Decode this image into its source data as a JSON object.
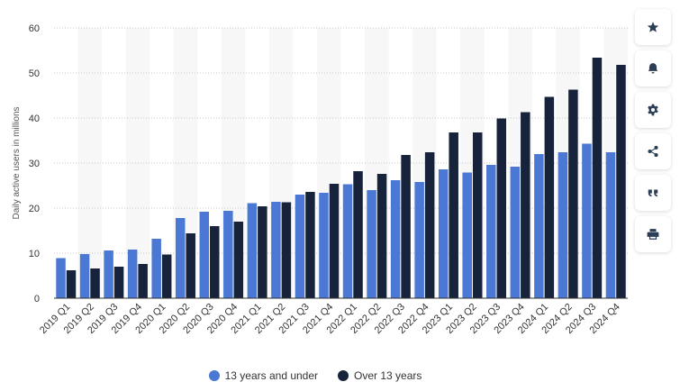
{
  "chart_data": {
    "type": "bar",
    "categories": [
      "2019 Q1",
      "2019 Q2",
      "2019 Q3",
      "2019 Q4",
      "2020 Q1",
      "2020 Q2",
      "2020 Q3",
      "2020 Q4",
      "2021 Q1",
      "2021 Q2",
      "2021 Q3",
      "2021 Q4",
      "2022 Q1",
      "2022 Q2",
      "2022 Q3",
      "2022 Q4",
      "2023 Q1",
      "2023 Q2",
      "2023 Q3",
      "2023 Q4",
      "2024 Q1",
      "2024 Q2",
      "2024 Q3",
      "2024 Q4"
    ],
    "series": [
      {
        "name": "13 years and under",
        "color": "#4a78d4",
        "values": [
          8.9,
          9.8,
          10.6,
          10.8,
          13.2,
          17.8,
          19.2,
          19.4,
          21.1,
          21.4,
          23.0,
          23.4,
          25.3,
          24.0,
          26.2,
          25.8,
          28.6,
          27.9,
          29.6,
          29.2,
          32.0,
          32.4,
          34.3,
          32.4
        ]
      },
      {
        "name": "Over 13 years",
        "color": "#17233b",
        "values": [
          6.2,
          6.6,
          7.0,
          7.6,
          9.7,
          14.4,
          16.0,
          17.0,
          20.4,
          21.3,
          23.6,
          25.4,
          28.2,
          27.6,
          31.8,
          32.4,
          36.8,
          36.8,
          39.9,
          41.3,
          44.7,
          46.3,
          53.4,
          51.8
        ]
      }
    ],
    "ylabel": "Daily active users in millions",
    "ylim": [
      0,
      60
    ],
    "yticks": [
      0,
      10,
      20,
      30,
      40,
      50,
      60
    ],
    "grid": true,
    "legend_position": "bottom-center"
  },
  "toolbar": {
    "icons": [
      "star-icon",
      "bell-icon",
      "gear-icon",
      "share-icon",
      "quote-icon",
      "print-icon"
    ]
  }
}
